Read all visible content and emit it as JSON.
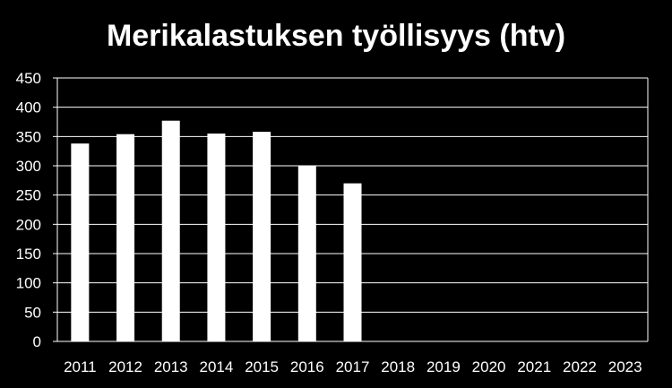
{
  "chart_data": {
    "type": "bar",
    "title": "Merikalastuksen työllisyys (htv)",
    "xlabel": "",
    "ylabel": "",
    "categories": [
      "2011",
      "2012",
      "2013",
      "2014",
      "2015",
      "2016",
      "2017",
      "2018",
      "2019",
      "2020",
      "2021",
      "2022",
      "2023"
    ],
    "values": [
      338,
      354,
      377,
      355,
      358,
      300,
      270,
      null,
      null,
      null,
      null,
      null,
      null
    ],
    "ylim": [
      0,
      450
    ],
    "yticks": [
      "0",
      "50",
      "100",
      "150",
      "200",
      "250",
      "300",
      "350",
      "400",
      "450"
    ],
    "grid": true,
    "legend": "none",
    "bar_color": "#ffffff",
    "background_color": "#000000",
    "grid_color": "#ffffff"
  }
}
